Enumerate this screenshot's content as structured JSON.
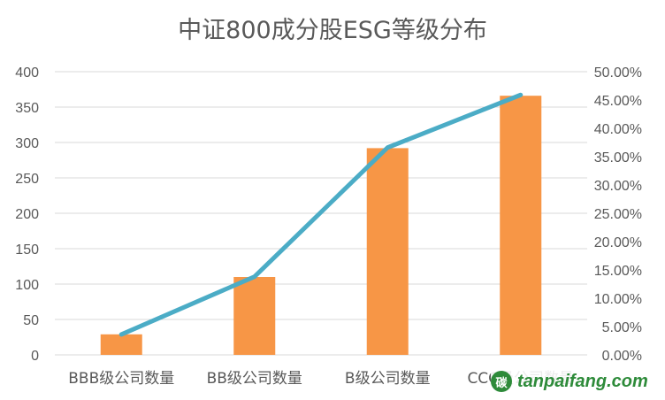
{
  "chart_data": {
    "type": "bar",
    "title": "中证800成分股ESG等级分布",
    "categories": [
      "BBB级公司数量",
      "BB级公司数量",
      "B级公司数量",
      "CCC级公司数量"
    ],
    "series": [
      {
        "type": "bar",
        "axis": "left",
        "color": "#F79646",
        "values": [
          29,
          110,
          292,
          366
        ]
      },
      {
        "type": "line",
        "axis": "right",
        "color": "#4BACC6",
        "values": [
          0.036,
          0.138,
          0.366,
          0.459
        ]
      }
    ],
    "ylim": [
      0,
      400
    ],
    "y_ticks": [
      "0",
      "50",
      "100",
      "150",
      "200",
      "250",
      "300",
      "350",
      "400"
    ],
    "y2lim": [
      0,
      0.5
    ],
    "y2_ticks": [
      "0.00%",
      "5.00%",
      "10.00%",
      "15.00%",
      "20.00%",
      "25.00%",
      "30.00%",
      "35.00%",
      "40.00%",
      "45.00%",
      "50.00%"
    ],
    "grid": true,
    "legend": "none",
    "gridline_color": "#D9D9D9"
  },
  "watermark": {
    "logo_text": "碳",
    "text": "tanpaifang.com",
    "color": "#2e8b3a"
  }
}
